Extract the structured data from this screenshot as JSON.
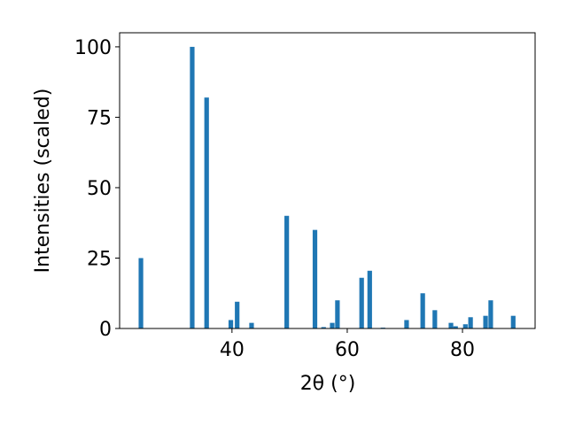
{
  "chart_data": {
    "type": "bar",
    "x_label": "2θ (°)",
    "y_label": "Intensities (scaled)",
    "x": [
      24.2,
      33.1,
      35.6,
      39.8,
      40.9,
      43.4,
      49.5,
      54.4,
      55.9,
      57.4,
      58.3,
      62.5,
      63.9,
      66.2,
      70.3,
      73.1,
      75.2,
      78.0,
      78.8,
      80.5,
      81.4,
      84.0,
      84.9,
      88.8
    ],
    "values": [
      25,
      100,
      82,
      3,
      9.5,
      2,
      40,
      35,
      0.5,
      2,
      10,
      18,
      20.5,
      0.3,
      3,
      12.5,
      6.5,
      2,
      0.8,
      1.5,
      4,
      4.5,
      10,
      4.5
    ],
    "color": "#1f77b4",
    "xlim": [
      20.5,
      92.6
    ],
    "xticks": [
      40,
      60,
      80
    ],
    "ylim": [
      0,
      105
    ],
    "yticks": [
      0,
      25,
      50,
      75,
      100
    ]
  }
}
